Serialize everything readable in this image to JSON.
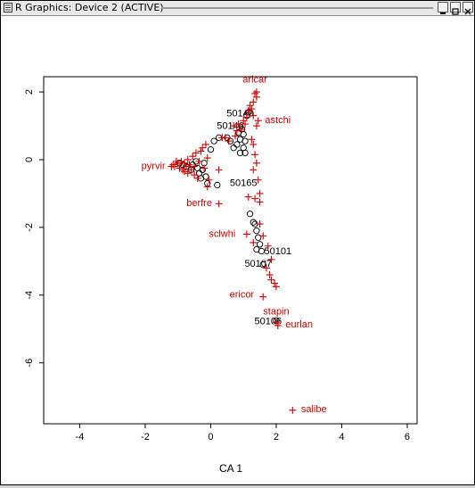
{
  "window": {
    "title": "R Graphics: Device 2 (ACTIVE)",
    "icons": {
      "menu": "window-menu-icon",
      "minimize": "minimize-icon",
      "maximize": "maximize-icon",
      "close": "close-icon"
    }
  },
  "chart_data": {
    "type": "scatter",
    "xlabel": "CA 1",
    "ylabel": "",
    "xlim": [
      -5.1,
      6.3
    ],
    "ylim": [
      -7.8,
      2.45
    ],
    "xticks": [
      -4,
      -2,
      0,
      2,
      4,
      6
    ],
    "yticks": [
      -6,
      -4,
      -2,
      0,
      2
    ],
    "colors": {
      "sites": "#000000",
      "species": "#cc0000",
      "axes": "#000000"
    },
    "series": [
      {
        "kind": "sites",
        "marker": "circle",
        "points": [
          [
            -0.95,
            -0.1
          ],
          [
            -0.85,
            -0.15
          ],
          [
            -0.75,
            -0.2
          ],
          [
            -0.6,
            -0.3
          ],
          [
            -0.55,
            -0.15
          ],
          [
            -0.45,
            -0.05
          ],
          [
            -0.4,
            -0.25
          ],
          [
            -0.35,
            -0.4
          ],
          [
            -0.3,
            -0.55
          ],
          [
            -0.25,
            -0.3
          ],
          [
            -0.2,
            -0.1
          ],
          [
            -0.15,
            -0.5
          ],
          [
            -0.1,
            -0.7
          ],
          [
            0.0,
            0.3
          ],
          [
            0.1,
            0.55
          ],
          [
            0.25,
            0.65
          ],
          [
            0.2,
            -0.75
          ],
          [
            0.5,
            0.65
          ],
          [
            0.6,
            0.55
          ],
          [
            0.7,
            0.35
          ],
          [
            0.8,
            0.45
          ],
          [
            0.85,
            0.8
          ],
          [
            0.9,
            0.6
          ],
          [
            0.95,
            0.9
          ],
          [
            1.0,
            0.75
          ],
          [
            1.05,
            0.55
          ],
          [
            1.1,
            1.3
          ],
          [
            1.15,
            1.4
          ],
          [
            1.0,
            0.35
          ],
          [
            0.9,
            0.2
          ],
          [
            1.05,
            0.2
          ],
          [
            1.2,
            -1.6
          ],
          [
            1.3,
            -1.85
          ],
          [
            1.35,
            -1.9
          ],
          [
            1.4,
            -2.1
          ],
          [
            1.45,
            -2.3
          ],
          [
            1.5,
            -2.5
          ],
          [
            1.55,
            -2.7
          ],
          [
            1.4,
            -2.65
          ],
          [
            1.6,
            -3.1
          ],
          [
            2.0,
            -4.75
          ]
        ],
        "labels": [
          {
            "text": "50149",
            "x": 0.9,
            "y": 1.35
          },
          {
            "text": "50146",
            "x": 0.6,
            "y": 0.98
          },
          {
            "text": "50165",
            "x": 1.0,
            "y": -0.7
          },
          {
            "text": "50101",
            "x": 2.05,
            "y": -2.72
          },
          {
            "text": "50107",
            "x": 1.45,
            "y": -3.08
          },
          {
            "text": "50106",
            "x": 1.75,
            "y": -4.78
          }
        ]
      },
      {
        "kind": "species",
        "marker": "plus",
        "points": [
          [
            -1.15,
            -0.15
          ],
          [
            -1.05,
            -0.05
          ],
          [
            -1.1,
            -0.2
          ],
          [
            -1.0,
            -0.1
          ],
          [
            -0.95,
            -0.25
          ],
          [
            -0.9,
            -0.05
          ],
          [
            -0.85,
            -0.3
          ],
          [
            -0.8,
            -0.1
          ],
          [
            -0.8,
            -0.35
          ],
          [
            -0.75,
            -0.2
          ],
          [
            -0.7,
            -0.4
          ],
          [
            -0.7,
            0.0
          ],
          [
            -0.65,
            -0.15
          ],
          [
            -0.6,
            -0.3
          ],
          [
            -0.55,
            0.1
          ],
          [
            -0.5,
            -0.2
          ],
          [
            -0.5,
            -0.45
          ],
          [
            -0.45,
            0.2
          ],
          [
            -0.4,
            -0.55
          ],
          [
            -0.35,
            -0.05
          ],
          [
            -0.3,
            0.25
          ],
          [
            -0.25,
            0.35
          ],
          [
            -0.2,
            -0.25
          ],
          [
            -0.15,
            0.45
          ],
          [
            -0.1,
            0.05
          ],
          [
            -0.05,
            -0.6
          ],
          [
            -0.1,
            -0.8
          ],
          [
            0.25,
            -0.3
          ],
          [
            0.35,
            0.65
          ],
          [
            0.45,
            0.65
          ],
          [
            0.55,
            0.55
          ],
          [
            0.7,
            1.0
          ],
          [
            0.75,
            0.7
          ],
          [
            0.8,
            0.85
          ],
          [
            0.85,
            1.05
          ],
          [
            0.95,
            0.9
          ],
          [
            1.0,
            1.15
          ],
          [
            1.05,
            1.05
          ],
          [
            1.1,
            1.25
          ],
          [
            1.15,
            1.45
          ],
          [
            1.2,
            1.6
          ],
          [
            1.25,
            1.5
          ],
          [
            1.3,
            1.7
          ],
          [
            1.35,
            1.95
          ],
          [
            1.4,
            1.85
          ],
          [
            1.3,
            1.3
          ],
          [
            1.4,
            1.0
          ],
          [
            1.25,
            0.6
          ],
          [
            1.3,
            0.45
          ],
          [
            1.35,
            0.15
          ],
          [
            1.4,
            -0.1
          ],
          [
            1.3,
            -0.3
          ],
          [
            1.45,
            -0.6
          ],
          [
            1.5,
            -1.0
          ],
          [
            1.15,
            -1.1
          ],
          [
            1.35,
            -1.15
          ],
          [
            1.5,
            -1.25
          ],
          [
            1.6,
            -2.25
          ],
          [
            1.3,
            -2.45
          ],
          [
            1.75,
            -2.55
          ],
          [
            1.85,
            -2.95
          ],
          [
            1.7,
            -3.2
          ],
          [
            1.8,
            -3.4
          ],
          [
            1.85,
            -3.55
          ],
          [
            1.95,
            -3.65
          ],
          [
            2.0,
            -3.75
          ],
          [
            1.5,
            -1.9
          ]
        ],
        "labels": [
          {
            "text": "aricar",
            "x": 1.35,
            "y": 2.35,
            "px": 1.4,
            "py": 2.0
          },
          {
            "text": "astchi",
            "x": 2.05,
            "y": 1.15,
            "px": 1.45,
            "py": 1.15
          },
          {
            "text": "pyrvir",
            "x": -1.75,
            "y": -0.2,
            "px": -1.2,
            "py": -0.2
          },
          {
            "text": "berfre",
            "x": -0.35,
            "y": -1.3,
            "px": 0.25,
            "py": -1.3
          },
          {
            "text": "sclwhi",
            "x": 0.35,
            "y": -2.2,
            "px": 1.1,
            "py": -2.2
          },
          {
            "text": "ericor",
            "x": 0.95,
            "y": -4.0,
            "px": 1.6,
            "py": -4.05
          },
          {
            "text": "stapin",
            "x": 2.0,
            "y": -4.5,
            "px": 2.0,
            "py": -4.8
          },
          {
            "text": "eurlan",
            "x": 2.7,
            "y": -4.88,
            "px": 2.05,
            "py": -4.9
          },
          {
            "text": "salibe",
            "x": 3.15,
            "y": -7.38,
            "px": 2.5,
            "py": -7.4
          }
        ]
      }
    ]
  }
}
